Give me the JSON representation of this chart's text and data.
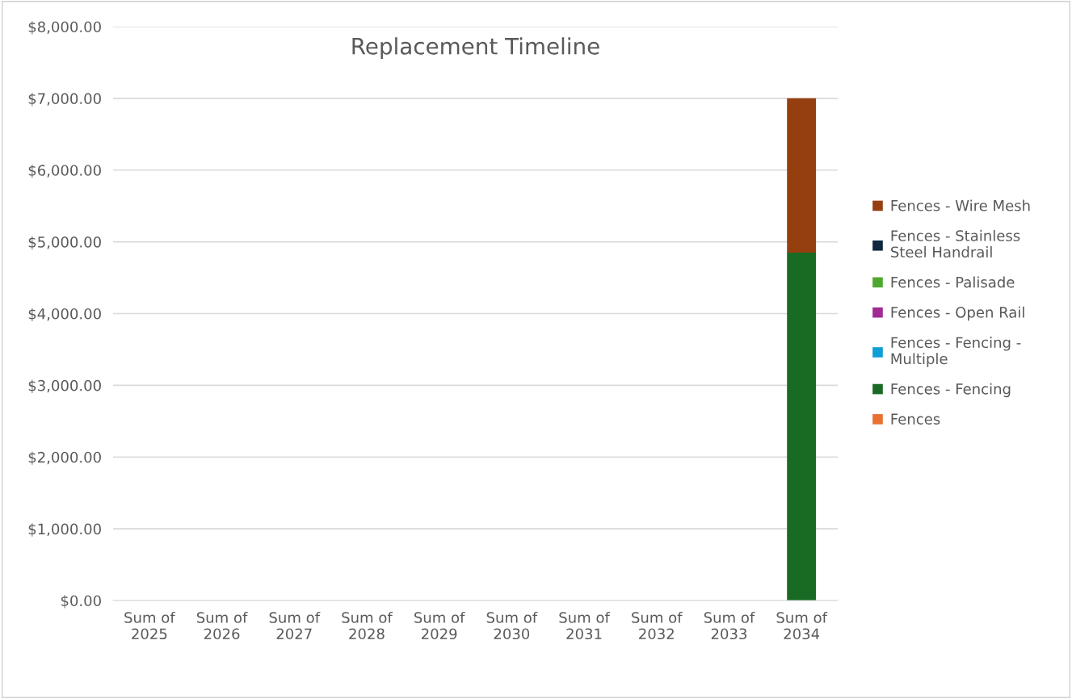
{
  "chart_data": {
    "type": "bar",
    "title": "Replacement Timeline",
    "stacked": true,
    "grid": "y",
    "legend": "right",
    "categories": [
      "Sum of\n2025",
      "Sum of\n2026",
      "Sum of\n2027",
      "Sum of\n2028",
      "Sum of\n2029",
      "Sum of\n2030",
      "Sum of\n2031",
      "Sum of\n2032",
      "Sum of\n2033",
      "Sum of\n2034"
    ],
    "ylim": [
      0,
      8000
    ],
    "yticks": [
      {
        "value": 0,
        "label": "$0.00"
      },
      {
        "value": 1000,
        "label": "$1,000.00"
      },
      {
        "value": 2000,
        "label": "$2,000.00"
      },
      {
        "value": 3000,
        "label": "$3,000.00"
      },
      {
        "value": 4000,
        "label": "$4,000.00"
      },
      {
        "value": 5000,
        "label": "$5,000.00"
      },
      {
        "value": 6000,
        "label": "$6,000.00"
      },
      {
        "value": 7000,
        "label": "$7,000.00"
      },
      {
        "value": 8000,
        "label": "$8,000.00"
      }
    ],
    "series": [
      {
        "name": "Fences",
        "color": "#e97132",
        "values": [
          0,
          0,
          0,
          0,
          0,
          0,
          0,
          0,
          0,
          0
        ]
      },
      {
        "name": "Fences - Fencing",
        "color": "#196b24",
        "values": [
          0,
          0,
          0,
          0,
          0,
          0,
          0,
          0,
          0,
          4850
        ]
      },
      {
        "name": "Fences - Fencing - Multiple",
        "color": "#0f9ed5",
        "values": [
          0,
          0,
          0,
          0,
          0,
          0,
          0,
          0,
          0,
          0
        ]
      },
      {
        "name": "Fences - Open Rail",
        "color": "#a02b93",
        "values": [
          0,
          0,
          0,
          0,
          0,
          0,
          0,
          0,
          0,
          0
        ]
      },
      {
        "name": "Fences - Palisade",
        "color": "#4ea72e",
        "values": [
          0,
          0,
          0,
          0,
          0,
          0,
          0,
          0,
          0,
          0
        ]
      },
      {
        "name": "Fences - Stainless Steel Handrail",
        "color": "#0e2841",
        "values": [
          0,
          0,
          0,
          0,
          0,
          0,
          0,
          0,
          0,
          0
        ]
      },
      {
        "name": "Fences - Wire Mesh",
        "color": "#953f10",
        "values": [
          0,
          0,
          0,
          0,
          0,
          0,
          0,
          0,
          0,
          2150
        ]
      }
    ]
  }
}
